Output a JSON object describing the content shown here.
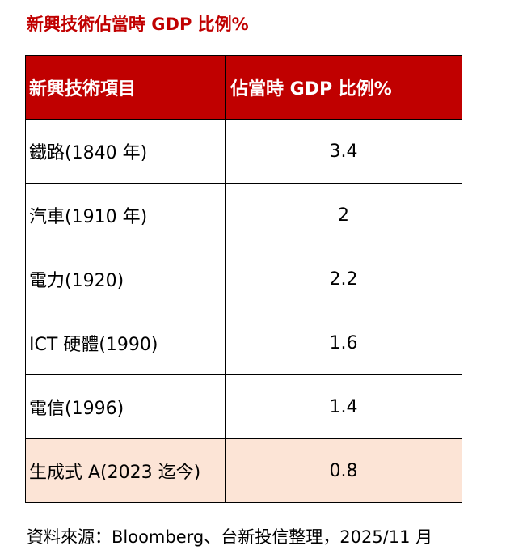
{
  "title": "新興技術佔當時 GDP 比例%",
  "table": {
    "headers": [
      "新興技術項目",
      "佔當時 GDP 比例%"
    ],
    "rows": [
      {
        "item": "鐵路(1840 年)",
        "value": "3.4"
      },
      {
        "item": "汽車(1910 年)",
        "value": "2"
      },
      {
        "item": "電力(1920)",
        "value": "2.2"
      },
      {
        "item": "ICT 硬體(1990)",
        "value": "1.6"
      },
      {
        "item": "電信(1996)",
        "value": "1.4"
      },
      {
        "item": "生成式 A(2023 迄今)",
        "value": "0.8"
      }
    ]
  },
  "source": "資料來源：Bloomberg、台新投信整理，2025/11 月",
  "colors": {
    "header_bg": "#C00000",
    "highlight_bg": "#FCE4D6"
  }
}
